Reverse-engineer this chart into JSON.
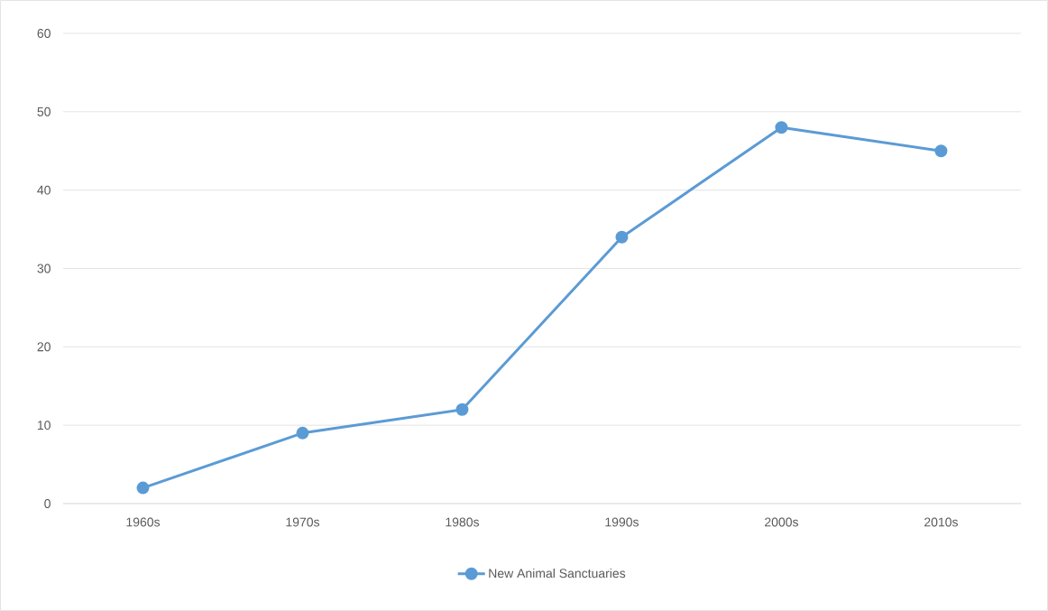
{
  "chart_data": {
    "type": "line",
    "categories": [
      "1960s",
      "1970s",
      "1980s",
      "1990s",
      "2000s",
      "2010s"
    ],
    "series": [
      {
        "name": "New Animal Sanctuaries",
        "color": "#5b9bd5",
        "values": [
          2,
          9,
          12,
          34,
          48,
          45
        ]
      }
    ],
    "ylim": [
      0,
      60
    ],
    "yticks": [
      0,
      10,
      20,
      30,
      40,
      50,
      60
    ],
    "grid": "y",
    "legend": "bottom",
    "marker": "circle",
    "line_style": "solid"
  }
}
